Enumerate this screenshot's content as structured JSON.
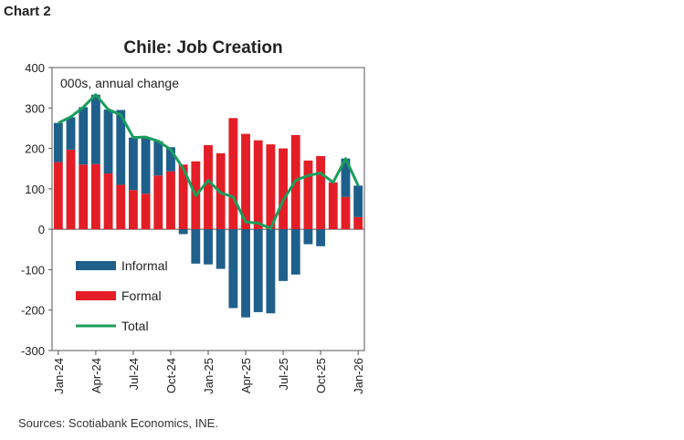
{
  "header": {
    "corner_label": "Chart 2",
    "source": "Sources: Scotiabank Economics, INE."
  },
  "chart_data": {
    "type": "bar",
    "title": "Chile: Job Creation",
    "annotation": "000s, annual change",
    "xlabel": "",
    "ylabel": "",
    "ylim": [
      -300,
      400
    ],
    "yticks": [
      -300,
      -200,
      -100,
      0,
      100,
      200,
      300,
      400
    ],
    "grid": false,
    "legend_position": "lower-left",
    "categories": [
      "Jan-24",
      "Feb-24",
      "Mar-24",
      "Apr-24",
      "May-24",
      "Jun-24",
      "Jul-24",
      "Aug-24",
      "Sep-24",
      "Oct-24",
      "Nov-24",
      "Dec-24",
      "Jan-25",
      "Feb-25",
      "Mar-25",
      "Apr-25",
      "May-25",
      "Jun-25",
      "Jul-25",
      "Aug-25",
      "Sep-25",
      "Oct-25",
      "Nov-25",
      "Dec-25",
      "Jan-26"
    ],
    "x_tick_labels": [
      "Jan-24",
      "Apr-24",
      "Jul-24",
      "Oct-24",
      "Jan-25",
      "Apr-25",
      "Jul-25",
      "Oct-25",
      "Jan-26"
    ],
    "x_tick_indices": [
      0,
      3,
      6,
      9,
      12,
      15,
      18,
      21,
      24
    ],
    "series": [
      {
        "name": "Informal",
        "kind": "bar",
        "color": "#1f5f8b",
        "values": [
          97,
          80,
          142,
          172,
          158,
          185,
          130,
          140,
          85,
          60,
          -12,
          -85,
          -87,
          -98,
          -195,
          -218,
          -205,
          -208,
          -128,
          -112,
          -37,
          -42,
          0,
          95,
          78
        ]
      },
      {
        "name": "Formal",
        "kind": "bar",
        "color": "#e41e26",
        "values": [
          166,
          197,
          160,
          161,
          138,
          110,
          97,
          88,
          133,
          143,
          160,
          168,
          208,
          188,
          275,
          236,
          220,
          210,
          200,
          233,
          170,
          181,
          116,
          80,
          30
        ]
      },
      {
        "name": "Total",
        "kind": "line",
        "color": "#1a9e5c",
        "values": [
          263,
          278,
          302,
          333,
          296,
          283,
          227,
          228,
          218,
          197,
          150,
          83,
          121,
          90,
          80,
          18,
          15,
          2,
          72,
          121,
          133,
          139,
          116,
          175,
          108
        ]
      }
    ]
  }
}
